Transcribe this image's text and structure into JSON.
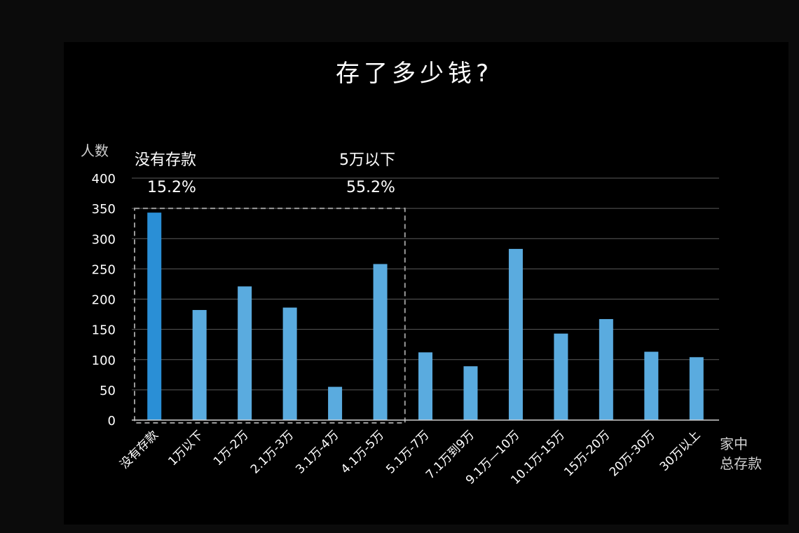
{
  "chart_data": {
    "type": "bar",
    "title": "存了多少钱?",
    "ylabel": "人数",
    "xlabel": "家中\n总存款",
    "ylim": [
      0,
      400
    ],
    "yticks": [
      0,
      50,
      100,
      150,
      200,
      250,
      300,
      350,
      400
    ],
    "grid": true,
    "categories": [
      "没有存款",
      "1万以下",
      "1万-2万",
      "2.1万-3万",
      "3.1万-4万",
      "4.1万-5万",
      "5.1万-7万",
      "7.1万到9万",
      "9.1万—10万",
      "10.1万-15万",
      "15万-20万",
      "20万-30万",
      "30万以上"
    ],
    "values": [
      343,
      182,
      221,
      186,
      55,
      258,
      112,
      89,
      283,
      143,
      167,
      113,
      104
    ],
    "colors": {
      "highlight": "#2a8fd6",
      "bar": "#5aabdf",
      "text": "#ffffff",
      "axis_label": "#cfcfcf",
      "grid": "#5a5a5a",
      "dashed_box": "#9a9a9a"
    },
    "highlight_index": 0,
    "annotations": [
      {
        "label": "没有存款",
        "value": "15.2%"
      },
      {
        "label": "5万以下",
        "value": "55.2%"
      }
    ]
  }
}
